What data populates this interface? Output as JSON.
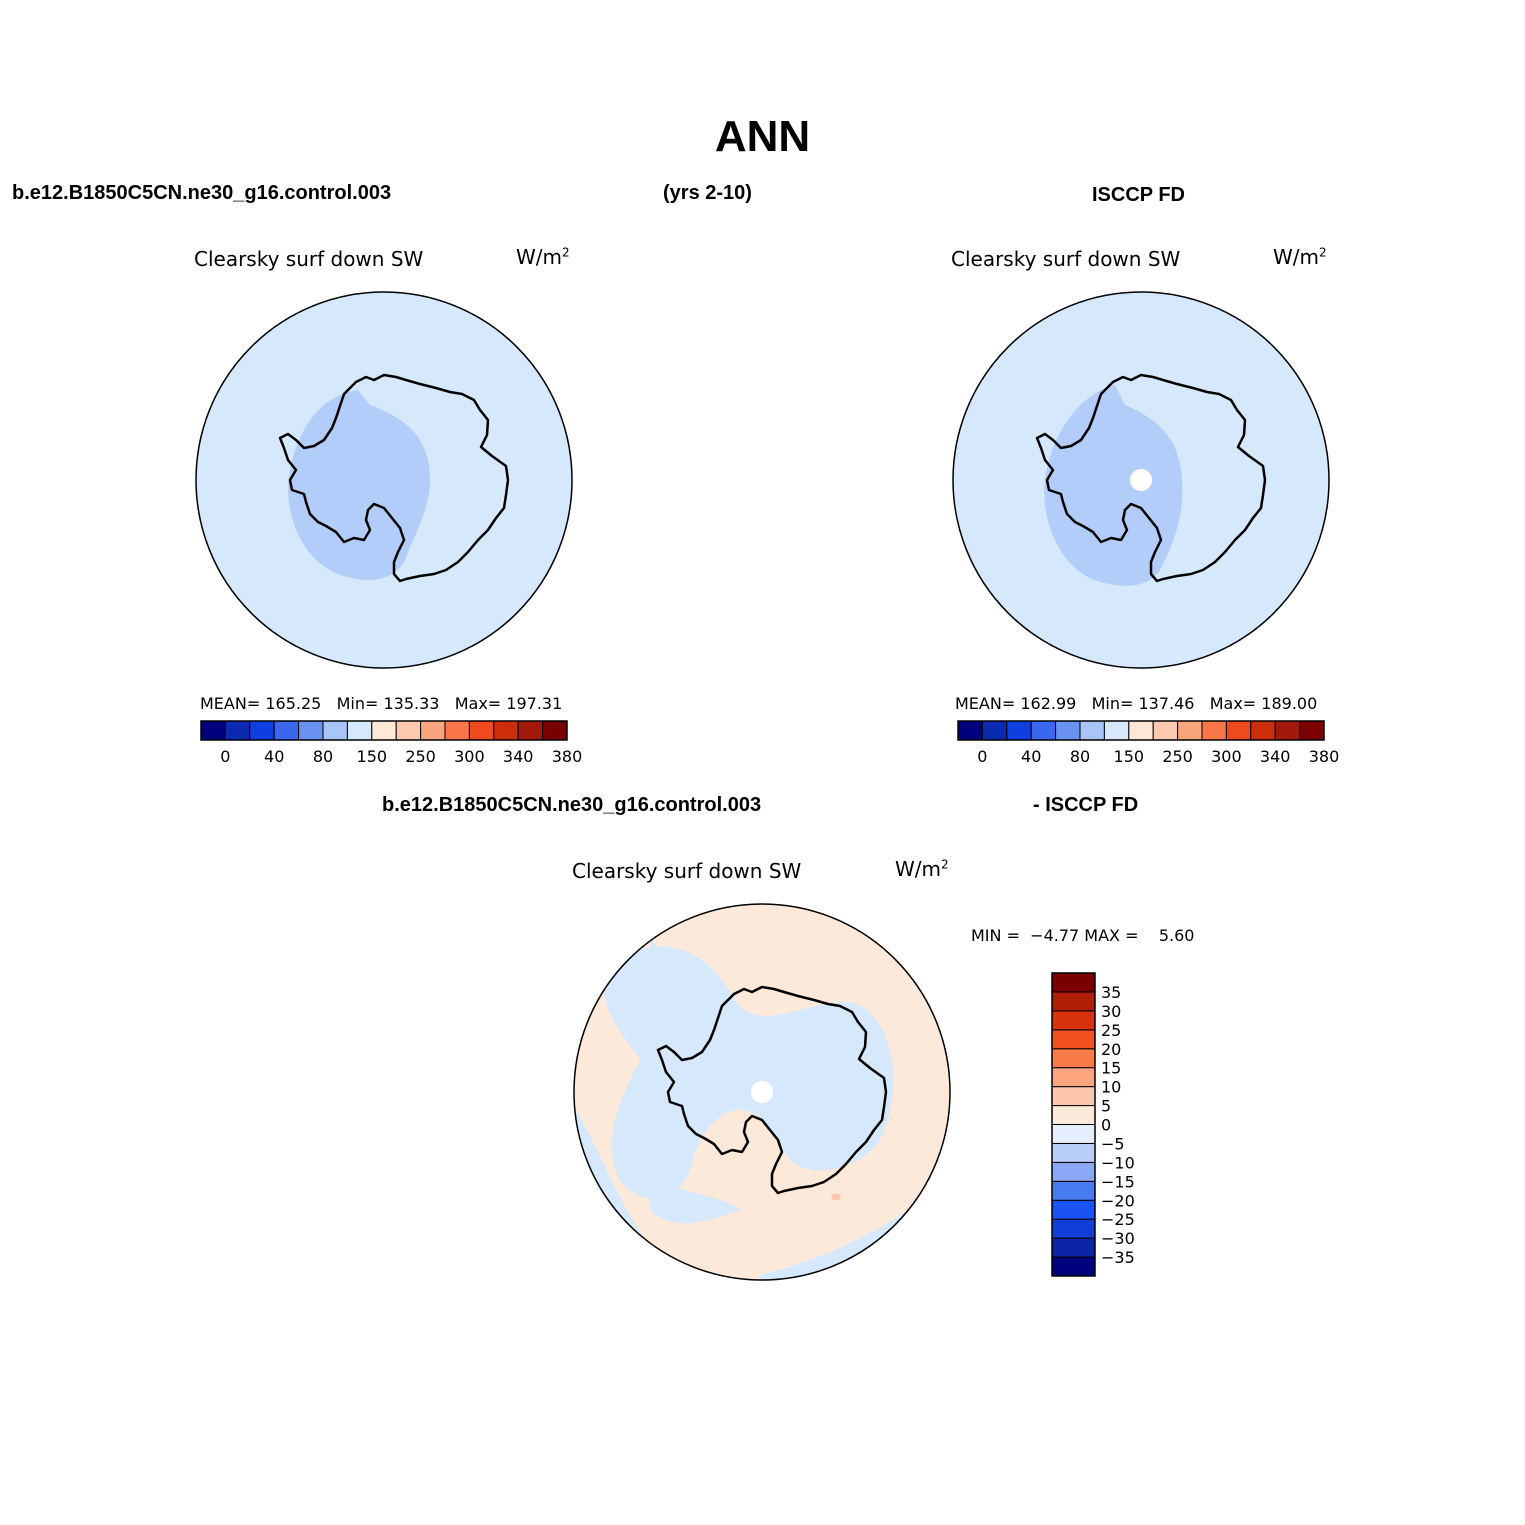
{
  "figure": {
    "title": "ANN",
    "case_name": "b.e12.B1850C5CN.ne30_g16.control.003",
    "years": "(yrs 2-10)",
    "obs_name": "ISCCP FD",
    "diff_case_name": "b.e12.B1850C5CN.ne30_g16.control.003",
    "diff_obs_name": "- ISCCP FD"
  },
  "panels": {
    "model": {
      "field": "Clearsky surf down SW",
      "units": "W/m",
      "units_sup": "2",
      "mean_label": "MEAN=",
      "mean": "165.25",
      "min_label": "Min=",
      "min": "135.33",
      "max_label": "Max=",
      "max": "197.31"
    },
    "obs": {
      "field": "Clearsky surf down SW",
      "units": "W/m",
      "units_sup": "2",
      "mean_label": "MEAN=",
      "mean": "162.99",
      "min_label": "Min=",
      "min": "137.46",
      "max_label": "Max=",
      "max": "189.00"
    },
    "diff": {
      "field": "Clearsky surf down SW",
      "units": "W/m",
      "units_sup": "2",
      "minmax_text": "MIN =  −4.77 MAX =    5.60"
    }
  },
  "colorbars": {
    "abs": {
      "colors": [
        "#00007f",
        "#0a2ab2",
        "#0f3fe0",
        "#3a66f0",
        "#6a92f2",
        "#a9c4f7",
        "#d6e8fc",
        "#fde7d6",
        "#fcc8ae",
        "#fba57f",
        "#f8764a",
        "#ee4a1e",
        "#cc2e0c",
        "#a3190b",
        "#7a0000"
      ],
      "labels": [
        "0",
        "40",
        "80",
        "150",
        "250",
        "300",
        "340",
        "380"
      ]
    },
    "diff": {
      "colors": [
        "#00007f",
        "#0a23a8",
        "#0f3fd8",
        "#1a52f5",
        "#4a7af2",
        "#8aa8f5",
        "#b9cff9",
        "#e4eefc",
        "#fde9d9",
        "#fcc7ad",
        "#fca57f",
        "#fa7a48",
        "#f2501e",
        "#d8330c",
        "#b01e06",
        "#7a0000"
      ],
      "labels": [
        "35",
        "30",
        "25",
        "20",
        "15",
        "10",
        "5",
        "0",
        "−5",
        "−10",
        "−15",
        "−20",
        "−25",
        "−30",
        "−35"
      ]
    }
  },
  "maps": {
    "ocean_color_abs": "#d6e8fc",
    "inner_color_abs": "#b3cdfa",
    "diff_positive_color": "#fde9d9",
    "diff_negative_color": "#d6e8fc",
    "coastline_color": "#000000",
    "missing_color": "#ffffff"
  }
}
